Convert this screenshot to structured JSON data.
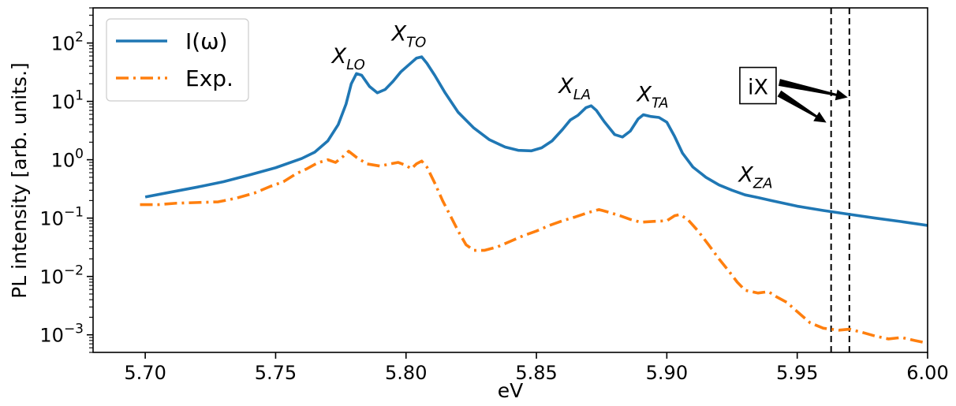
{
  "chart_data": {
    "type": "line",
    "title": "",
    "xlabel": "eV",
    "ylabel": "PL intensity [arb. units.]",
    "xlim": [
      5.68,
      6.0
    ],
    "ylim": [
      0.0005,
      400
    ],
    "yscale": "log",
    "grid": false,
    "legend_position": "top-left",
    "x_ticks": [
      5.7,
      5.75,
      5.8,
      5.85,
      5.9,
      5.95,
      6.0
    ],
    "x_tick_labels": [
      "5.70",
      "5.75",
      "5.80",
      "5.85",
      "5.90",
      "5.95",
      "6.00"
    ],
    "y_ticks": [
      0.001,
      0.01,
      0.1,
      1,
      10,
      100
    ],
    "y_tick_labels": [
      {
        "base": "10",
        "exp": "−3"
      },
      {
        "base": "10",
        "exp": "−2"
      },
      {
        "base": "10",
        "exp": "−1"
      },
      {
        "base": "10",
        "exp": "0"
      },
      {
        "base": "10",
        "exp": "1"
      },
      {
        "base": "10",
        "exp": "2"
      }
    ],
    "series": [
      {
        "name": "I(ω)",
        "color": "#1f77b4",
        "style": "solid",
        "points": [
          [
            5.7,
            0.23
          ],
          [
            5.71,
            0.28
          ],
          [
            5.72,
            0.34
          ],
          [
            5.73,
            0.42
          ],
          [
            5.74,
            0.55
          ],
          [
            5.75,
            0.73
          ],
          [
            5.76,
            1.05
          ],
          [
            5.765,
            1.35
          ],
          [
            5.77,
            2.1
          ],
          [
            5.774,
            4.0
          ],
          [
            5.777,
            9.0
          ],
          [
            5.779,
            20
          ],
          [
            5.781,
            30
          ],
          [
            5.783,
            28
          ],
          [
            5.786,
            18
          ],
          [
            5.789,
            14
          ],
          [
            5.792,
            16
          ],
          [
            5.795,
            22
          ],
          [
            5.798,
            32
          ],
          [
            5.801,
            42
          ],
          [
            5.804,
            55
          ],
          [
            5.806,
            58
          ],
          [
            5.808,
            45
          ],
          [
            5.811,
            28
          ],
          [
            5.815,
            14
          ],
          [
            5.82,
            6.5
          ],
          [
            5.826,
            3.5
          ],
          [
            5.832,
            2.2
          ],
          [
            5.838,
            1.65
          ],
          [
            5.843,
            1.45
          ],
          [
            5.848,
            1.42
          ],
          [
            5.852,
            1.6
          ],
          [
            5.856,
            2.1
          ],
          [
            5.86,
            3.3
          ],
          [
            5.863,
            4.8
          ],
          [
            5.866,
            5.8
          ],
          [
            5.869,
            7.8
          ],
          [
            5.871,
            8.4
          ],
          [
            5.873,
            7.0
          ],
          [
            5.876,
            4.5
          ],
          [
            5.88,
            2.7
          ],
          [
            5.883,
            2.45
          ],
          [
            5.886,
            3.1
          ],
          [
            5.889,
            5.0
          ],
          [
            5.891,
            5.9
          ],
          [
            5.894,
            5.5
          ],
          [
            5.897,
            5.3
          ],
          [
            5.9,
            4.4
          ],
          [
            5.903,
            2.5
          ],
          [
            5.906,
            1.3
          ],
          [
            5.91,
            0.75
          ],
          [
            5.915,
            0.5
          ],
          [
            5.92,
            0.37
          ],
          [
            5.925,
            0.3
          ],
          [
            5.93,
            0.25
          ],
          [
            5.935,
            0.225
          ],
          [
            5.94,
            0.2
          ],
          [
            5.95,
            0.16
          ],
          [
            5.96,
            0.135
          ],
          [
            5.97,
            0.116
          ],
          [
            5.98,
            0.1
          ],
          [
            5.99,
            0.087
          ],
          [
            6.0,
            0.075
          ]
        ]
      },
      {
        "name": "Exp.",
        "color": "#ff7f0e",
        "style": "dashdot",
        "points": [
          [
            5.698,
            0.17
          ],
          [
            5.705,
            0.17
          ],
          [
            5.712,
            0.18
          ],
          [
            5.72,
            0.185
          ],
          [
            5.728,
            0.19
          ],
          [
            5.735,
            0.22
          ],
          [
            5.742,
            0.27
          ],
          [
            5.748,
            0.35
          ],
          [
            5.753,
            0.42
          ],
          [
            5.758,
            0.58
          ],
          [
            5.762,
            0.7
          ],
          [
            5.766,
            0.88
          ],
          [
            5.77,
            1.0
          ],
          [
            5.773,
            0.9
          ],
          [
            5.776,
            1.15
          ],
          [
            5.778,
            1.4
          ],
          [
            5.781,
            1.1
          ],
          [
            5.785,
            0.85
          ],
          [
            5.79,
            0.78
          ],
          [
            5.794,
            0.85
          ],
          [
            5.797,
            0.9
          ],
          [
            5.8,
            0.8
          ],
          [
            5.802,
            0.7
          ],
          [
            5.804,
            0.85
          ],
          [
            5.806,
            0.95
          ],
          [
            5.808,
            0.75
          ],
          [
            5.811,
            0.4
          ],
          [
            5.814,
            0.2
          ],
          [
            5.817,
            0.11
          ],
          [
            5.82,
            0.06
          ],
          [
            5.823,
            0.035
          ],
          [
            5.826,
            0.028
          ],
          [
            5.83,
            0.028
          ],
          [
            5.835,
            0.032
          ],
          [
            5.84,
            0.04
          ],
          [
            5.845,
            0.05
          ],
          [
            5.85,
            0.06
          ],
          [
            5.855,
            0.075
          ],
          [
            5.86,
            0.09
          ],
          [
            5.865,
            0.105
          ],
          [
            5.87,
            0.125
          ],
          [
            5.874,
            0.14
          ],
          [
            5.878,
            0.125
          ],
          [
            5.882,
            0.11
          ],
          [
            5.886,
            0.095
          ],
          [
            5.89,
            0.085
          ],
          [
            5.895,
            0.088
          ],
          [
            5.9,
            0.09
          ],
          [
            5.903,
            0.11
          ],
          [
            5.905,
            0.115
          ],
          [
            5.908,
            0.095
          ],
          [
            5.912,
            0.06
          ],
          [
            5.916,
            0.035
          ],
          [
            5.92,
            0.02
          ],
          [
            5.924,
            0.012
          ],
          [
            5.927,
            0.008
          ],
          [
            5.93,
            0.0058
          ],
          [
            5.935,
            0.0052
          ],
          [
            5.939,
            0.0055
          ],
          [
            5.942,
            0.0045
          ],
          [
            5.946,
            0.0036
          ],
          [
            5.95,
            0.0025
          ],
          [
            5.955,
            0.0016
          ],
          [
            5.96,
            0.0013
          ],
          [
            5.966,
            0.0012
          ],
          [
            5.97,
            0.00125
          ],
          [
            5.975,
            0.0011
          ],
          [
            5.98,
            0.00095
          ],
          [
            5.985,
            0.00085
          ],
          [
            5.99,
            0.0009
          ],
          [
            5.995,
            0.0008
          ],
          [
            6.0,
            0.00072
          ]
        ]
      }
    ],
    "peak_annotations": [
      {
        "base": "X",
        "sub": "LO",
        "x": 5.78,
        "y": 45
      },
      {
        "base": "X",
        "sub": "TO",
        "x": 5.803,
        "y": 110
      },
      {
        "base": "X",
        "sub": "LA",
        "x": 5.867,
        "y": 14
      },
      {
        "base": "X",
        "sub": "TA",
        "x": 5.897,
        "y": 10
      },
      {
        "base": "X",
        "sub": "ZA",
        "x": 5.936,
        "y": 0.42
      }
    ],
    "vlines": [
      5.963,
      5.97
    ],
    "box_annotation": {
      "text": "iX",
      "x": 5.928,
      "y": 17
    }
  }
}
